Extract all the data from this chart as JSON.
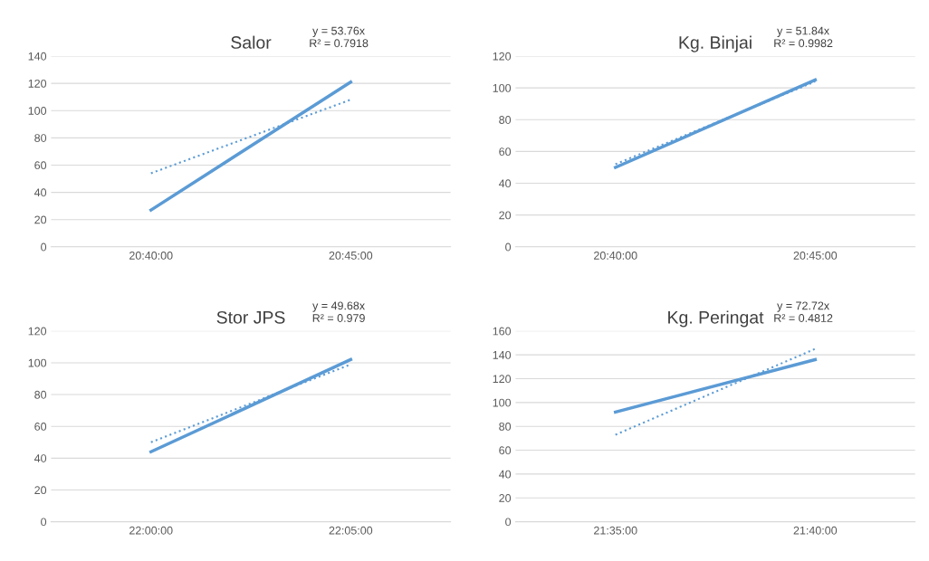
{
  "chart_data": [
    {
      "type": "line",
      "title": "Salor",
      "categories": [
        "20:40:00",
        "20:45:00"
      ],
      "ylim": [
        0,
        140
      ],
      "yticks": [
        0,
        20,
        40,
        60,
        80,
        100,
        120,
        140
      ],
      "grid": "y",
      "annotations": [
        "y = 53.76x",
        "R² = 0.7918"
      ],
      "series": [
        {
          "color": "#5b9bd5",
          "line_style": "solid",
          "values": [
            27,
            121
          ]
        },
        {
          "color": "#5b9bd5",
          "line_style": "dotted",
          "values": [
            54,
            108
          ]
        }
      ]
    },
    {
      "type": "line",
      "title": "Kg. Binjai",
      "categories": [
        "20:40:00",
        "20:45:00"
      ],
      "ylim": [
        0,
        120
      ],
      "yticks": [
        0,
        20,
        40,
        60,
        80,
        100,
        120
      ],
      "grid": "y",
      "annotations": [
        "y = 51.84x",
        "R² = 0.9982"
      ],
      "series": [
        {
          "color": "#5b9bd5",
          "line_style": "solid",
          "values": [
            50,
            105
          ]
        },
        {
          "color": "#5b9bd5",
          "line_style": "dotted",
          "values": [
            52,
            104
          ]
        }
      ]
    },
    {
      "type": "line",
      "title": "Stor JPS",
      "categories": [
        "22:00:00",
        "22:05:00"
      ],
      "ylim": [
        0,
        120
      ],
      "yticks": [
        0,
        20,
        40,
        60,
        80,
        100,
        120
      ],
      "grid": "y",
      "annotations": [
        "y = 49.68x",
        "R² = 0.979"
      ],
      "series": [
        {
          "color": "#5b9bd5",
          "line_style": "solid",
          "values": [
            44,
            102
          ]
        },
        {
          "color": "#5b9bd5",
          "line_style": "dotted",
          "values": [
            50,
            99
          ]
        }
      ]
    },
    {
      "type": "line",
      "title": "Kg. Peringat",
      "categories": [
        "21:35:00",
        "21:40:00"
      ],
      "ylim": [
        0,
        160
      ],
      "yticks": [
        0,
        20,
        40,
        60,
        80,
        100,
        120,
        140,
        160
      ],
      "grid": "y",
      "annotations": [
        "y = 72.72x",
        "R² = 0.4812"
      ],
      "series": [
        {
          "color": "#5b9bd5",
          "line_style": "solid",
          "values": [
            92,
            136
          ]
        },
        {
          "color": "#5b9bd5",
          "line_style": "dotted",
          "values": [
            73,
            145
          ]
        }
      ]
    }
  ]
}
